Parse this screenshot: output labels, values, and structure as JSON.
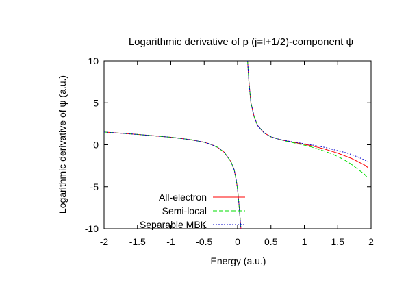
{
  "chart_data": {
    "type": "line",
    "title": "Logarithmic derivative of p (j=l+1/2)-component ψ",
    "xlabel": "Energy (a.u.)",
    "ylabel": "Logarithmic derivative of ψ (a.u.)",
    "xlim": [
      -2,
      2
    ],
    "ylim": [
      -10,
      10
    ],
    "x_ticks": [
      -2,
      -1.5,
      -1,
      -0.5,
      0,
      0.5,
      1,
      1.5,
      2
    ],
    "y_ticks": [
      -10,
      -5,
      0,
      5,
      10
    ],
    "x_tick_labels": [
      "-2",
      "-1.5",
      "-1",
      "-0.5",
      "0",
      "0.5",
      "1",
      "1.5",
      "2"
    ],
    "y_tick_labels": [
      "-10",
      "-5",
      "0",
      "5",
      "10"
    ],
    "grid": false,
    "legend_position": "bottom-left",
    "series": [
      {
        "name": "All-electron",
        "color": "#ff0000",
        "dash": "solid",
        "segments": [
          [
            [
              -2.0,
              1.52
            ],
            [
              -1.5,
              1.23
            ],
            [
              -1.0,
              0.9
            ],
            [
              -0.7,
              0.6
            ],
            [
              -0.5,
              0.3
            ],
            [
              -0.4,
              0.05
            ],
            [
              -0.3,
              -0.3
            ],
            [
              -0.2,
              -0.9
            ],
            [
              -0.1,
              -2.0
            ],
            [
              -0.05,
              -3.0
            ],
            [
              -0.02,
              -4.2
            ],
            [
              0.0,
              -5.3
            ],
            [
              0.02,
              -7.0
            ],
            [
              0.04,
              -9.0
            ],
            [
              0.05,
              -10.0
            ]
          ],
          [
            [
              0.15,
              10.0
            ],
            [
              0.17,
              7.5
            ],
            [
              0.2,
              5.0
            ],
            [
              0.25,
              3.3
            ],
            [
              0.3,
              2.3
            ],
            [
              0.4,
              1.4
            ],
            [
              0.5,
              0.95
            ],
            [
              0.6,
              0.7
            ],
            [
              0.7,
              0.5
            ],
            [
              0.8,
              0.35
            ],
            [
              0.9,
              0.2
            ],
            [
              1.0,
              0.05
            ],
            [
              1.1,
              -0.1
            ],
            [
              1.2,
              -0.3
            ],
            [
              1.3,
              -0.5
            ],
            [
              1.4,
              -0.75
            ],
            [
              1.5,
              -1.0
            ],
            [
              1.6,
              -1.3
            ],
            [
              1.7,
              -1.6
            ],
            [
              1.8,
              -2.0
            ],
            [
              1.9,
              -2.4
            ],
            [
              1.95,
              -2.7
            ]
          ]
        ]
      },
      {
        "name": "Semi-local",
        "color": "#00dd00",
        "dash": "dashed",
        "segments": [
          [
            [
              -2.0,
              1.52
            ],
            [
              -1.5,
              1.23
            ],
            [
              -1.0,
              0.9
            ],
            [
              -0.7,
              0.6
            ],
            [
              -0.5,
              0.3
            ],
            [
              -0.4,
              0.05
            ],
            [
              -0.3,
              -0.3
            ],
            [
              -0.2,
              -0.9
            ],
            [
              -0.1,
              -2.0
            ],
            [
              -0.05,
              -3.0
            ],
            [
              -0.02,
              -4.2
            ],
            [
              0.0,
              -5.3
            ],
            [
              0.02,
              -7.0
            ],
            [
              0.04,
              -9.0
            ],
            [
              0.05,
              -10.0
            ]
          ],
          [
            [
              0.15,
              10.0
            ],
            [
              0.17,
              7.5
            ],
            [
              0.2,
              5.0
            ],
            [
              0.25,
              3.3
            ],
            [
              0.3,
              2.3
            ],
            [
              0.4,
              1.4
            ],
            [
              0.5,
              0.95
            ],
            [
              0.6,
              0.7
            ],
            [
              0.7,
              0.48
            ],
            [
              0.8,
              0.3
            ],
            [
              0.9,
              0.12
            ],
            [
              1.0,
              -0.05
            ],
            [
              1.1,
              -0.25
            ],
            [
              1.2,
              -0.5
            ],
            [
              1.3,
              -0.75
            ],
            [
              1.4,
              -1.05
            ],
            [
              1.5,
              -1.4
            ],
            [
              1.6,
              -1.8
            ],
            [
              1.7,
              -2.3
            ],
            [
              1.8,
              -2.9
            ],
            [
              1.9,
              -3.5
            ],
            [
              1.95,
              -3.95
            ]
          ]
        ]
      },
      {
        "name": "Separable MBK",
        "color": "#0000cc",
        "dash": "dotted",
        "segments": [
          [
            [
              -2.0,
              1.52
            ],
            [
              -1.5,
              1.23
            ],
            [
              -1.0,
              0.9
            ],
            [
              -0.7,
              0.6
            ],
            [
              -0.5,
              0.3
            ],
            [
              -0.4,
              0.05
            ],
            [
              -0.3,
              -0.3
            ],
            [
              -0.2,
              -0.9
            ],
            [
              -0.1,
              -2.0
            ],
            [
              -0.05,
              -3.0
            ],
            [
              -0.02,
              -4.2
            ],
            [
              0.0,
              -5.3
            ],
            [
              0.02,
              -7.0
            ],
            [
              0.04,
              -9.0
            ],
            [
              0.05,
              -10.0
            ]
          ],
          [
            [
              0.15,
              10.0
            ],
            [
              0.17,
              7.5
            ],
            [
              0.2,
              5.0
            ],
            [
              0.25,
              3.3
            ],
            [
              0.3,
              2.3
            ],
            [
              0.4,
              1.4
            ],
            [
              0.5,
              0.95
            ],
            [
              0.6,
              0.7
            ],
            [
              0.7,
              0.52
            ],
            [
              0.8,
              0.38
            ],
            [
              0.9,
              0.25
            ],
            [
              1.0,
              0.12
            ],
            [
              1.1,
              0.0
            ],
            [
              1.2,
              -0.15
            ],
            [
              1.3,
              -0.3
            ],
            [
              1.4,
              -0.5
            ],
            [
              1.5,
              -0.7
            ],
            [
              1.6,
              -0.9
            ],
            [
              1.7,
              -1.15
            ],
            [
              1.8,
              -1.45
            ],
            [
              1.9,
              -1.8
            ],
            [
              1.95,
              -2.0
            ]
          ]
        ]
      }
    ]
  }
}
